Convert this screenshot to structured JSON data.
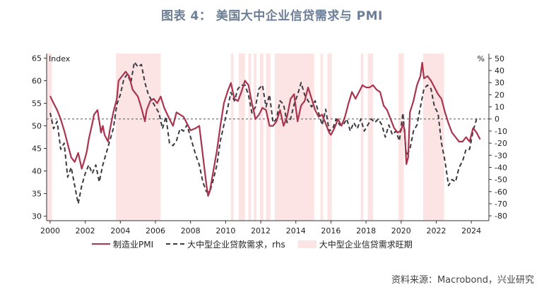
{
  "title": "图表 4： 美国大中企业信贷需求与 PMI",
  "source": "资料来源：Macrobond，兴业研究",
  "chart_data": {
    "type": "line",
    "left_axis_label": "Index",
    "right_axis_label": "%",
    "x_range": [
      1999.8,
      2025.0
    ],
    "y_left_range": [
      29,
      66
    ],
    "y_right_range": [
      -84,
      54
    ],
    "y_left_ticks": [
      30,
      35,
      40,
      45,
      50,
      55,
      60,
      65
    ],
    "y_right_ticks": [
      -80,
      -70,
      -60,
      -50,
      -40,
      -30,
      -20,
      -10,
      0,
      10,
      20,
      30,
      40,
      50
    ],
    "x_ticks": [
      2000,
      2002,
      2004,
      2006,
      2008,
      2010,
      2012,
      2014,
      2016,
      2018,
      2020,
      2022,
      2024
    ],
    "reference_line_right": 0,
    "shaded_periods": [
      [
        1999.8,
        2000.1
      ],
      [
        2003.75,
        2006.3
      ],
      [
        2010.3,
        2010.45
      ],
      [
        2010.75,
        2011.1
      ],
      [
        2011.3,
        2011.45
      ],
      [
        2011.6,
        2011.75
      ],
      [
        2011.95,
        2012.15
      ],
      [
        2012.3,
        2012.55
      ],
      [
        2012.8,
        2015.05
      ],
      [
        2015.4,
        2015.55
      ],
      [
        2015.8,
        2016.05
      ],
      [
        2017.7,
        2017.85
      ],
      [
        2018.1,
        2018.4
      ],
      [
        2019.85,
        2020.15
      ],
      [
        2021.25,
        2022.45
      ]
    ],
    "series": [
      {
        "name": "制造业PMI",
        "axis": "left",
        "color": "#a8344e",
        "style": "solid",
        "points": [
          [
            2000.0,
            56.6
          ],
          [
            2000.2,
            55.0
          ],
          [
            2000.4,
            53.5
          ],
          [
            2000.6,
            51.5
          ],
          [
            2000.8,
            49.0
          ],
          [
            2001.0,
            46.0
          ],
          [
            2001.2,
            43.0
          ],
          [
            2001.4,
            42.0
          ],
          [
            2001.6,
            44.0
          ],
          [
            2001.8,
            40.5
          ],
          [
            2002.0,
            43.0
          ],
          [
            2002.1,
            44.5
          ],
          [
            2002.2,
            47.0
          ],
          [
            2002.4,
            50.5
          ],
          [
            2002.5,
            52.5
          ],
          [
            2002.7,
            53.5
          ],
          [
            2002.8,
            51.0
          ],
          [
            2002.9,
            48.5
          ],
          [
            2003.0,
            50.0
          ],
          [
            2003.1,
            48.0
          ],
          [
            2003.3,
            46.5
          ],
          [
            2003.4,
            49.0
          ],
          [
            2003.6,
            53.0
          ],
          [
            2003.8,
            56.0
          ],
          [
            2003.9,
            60.0
          ],
          [
            2004.1,
            61.0
          ],
          [
            2004.3,
            62.0
          ],
          [
            2004.5,
            61.0
          ],
          [
            2004.7,
            58.0
          ],
          [
            2004.9,
            57.0
          ],
          [
            2005.0,
            56.5
          ],
          [
            2005.2,
            54.0
          ],
          [
            2005.4,
            51.0
          ],
          [
            2005.5,
            53.5
          ],
          [
            2005.7,
            55.5
          ],
          [
            2005.9,
            56.0
          ],
          [
            2006.1,
            55.0
          ],
          [
            2006.3,
            56.5
          ],
          [
            2006.5,
            54.0
          ],
          [
            2006.8,
            51.5
          ],
          [
            2007.0,
            50.0
          ],
          [
            2007.2,
            53.0
          ],
          [
            2007.4,
            52.5
          ],
          [
            2007.6,
            52.0
          ],
          [
            2007.8,
            50.5
          ],
          [
            2008.0,
            49.0
          ],
          [
            2008.3,
            49.5
          ],
          [
            2008.5,
            50.0
          ],
          [
            2008.7,
            43.5
          ],
          [
            2008.9,
            37.0
          ],
          [
            2009.0,
            34.5
          ],
          [
            2009.1,
            35.5
          ],
          [
            2009.3,
            40.0
          ],
          [
            2009.5,
            44.5
          ],
          [
            2009.7,
            50.0
          ],
          [
            2009.9,
            55.0
          ],
          [
            2010.1,
            57.5
          ],
          [
            2010.3,
            59.5
          ],
          [
            2010.5,
            56.0
          ],
          [
            2010.7,
            55.5
          ],
          [
            2010.9,
            57.5
          ],
          [
            2011.1,
            60.0
          ],
          [
            2011.3,
            59.0
          ],
          [
            2011.5,
            55.0
          ],
          [
            2011.7,
            51.5
          ],
          [
            2011.9,
            52.5
          ],
          [
            2012.1,
            54.0
          ],
          [
            2012.3,
            53.5
          ],
          [
            2012.5,
            50.0
          ],
          [
            2012.7,
            50.0
          ],
          [
            2012.9,
            51.0
          ],
          [
            2013.1,
            53.5
          ],
          [
            2013.3,
            50.0
          ],
          [
            2013.5,
            52.0
          ],
          [
            2013.7,
            56.0
          ],
          [
            2013.9,
            57.0
          ],
          [
            2014.1,
            51.0
          ],
          [
            2014.3,
            54.5
          ],
          [
            2014.5,
            55.5
          ],
          [
            2014.7,
            58.5
          ],
          [
            2014.9,
            56.0
          ],
          [
            2015.1,
            53.5
          ],
          [
            2015.3,
            52.0
          ],
          [
            2015.5,
            52.5
          ],
          [
            2015.7,
            50.5
          ],
          [
            2015.9,
            48.5
          ],
          [
            2016.0,
            48.0
          ],
          [
            2016.2,
            49.5
          ],
          [
            2016.4,
            51.5
          ],
          [
            2016.6,
            50.0
          ],
          [
            2016.8,
            52.0
          ],
          [
            2017.0,
            55.0
          ],
          [
            2017.2,
            57.5
          ],
          [
            2017.4,
            56.0
          ],
          [
            2017.6,
            57.5
          ],
          [
            2017.8,
            59.0
          ],
          [
            2018.0,
            58.5
          ],
          [
            2018.2,
            58.5
          ],
          [
            2018.4,
            59.0
          ],
          [
            2018.6,
            58.0
          ],
          [
            2018.8,
            57.5
          ],
          [
            2019.0,
            54.5
          ],
          [
            2019.2,
            53.5
          ],
          [
            2019.4,
            51.5
          ],
          [
            2019.6,
            49.5
          ],
          [
            2019.8,
            48.5
          ],
          [
            2020.0,
            49.0
          ],
          [
            2020.1,
            50.5
          ],
          [
            2020.2,
            49.0
          ],
          [
            2020.3,
            41.5
          ],
          [
            2020.4,
            43.0
          ],
          [
            2020.5,
            53.0
          ],
          [
            2020.7,
            55.5
          ],
          [
            2020.9,
            59.0
          ],
          [
            2021.1,
            61.0
          ],
          [
            2021.2,
            64.0
          ],
          [
            2021.3,
            60.5
          ],
          [
            2021.5,
            61.0
          ],
          [
            2021.7,
            60.0
          ],
          [
            2021.9,
            58.5
          ],
          [
            2022.1,
            57.0
          ],
          [
            2022.3,
            56.0
          ],
          [
            2022.5,
            53.0
          ],
          [
            2022.7,
            50.5
          ],
          [
            2022.9,
            48.5
          ],
          [
            2023.1,
            47.5
          ],
          [
            2023.3,
            46.5
          ],
          [
            2023.5,
            46.5
          ],
          [
            2023.7,
            47.5
          ],
          [
            2023.9,
            46.5
          ],
          [
            2024.1,
            49.5
          ],
          [
            2024.3,
            48.5
          ],
          [
            2024.5,
            47.0
          ]
        ]
      },
      {
        "name": "大中型企业贷款需求，rhs",
        "axis": "right",
        "color": "#3a3a42",
        "style": "dashed",
        "points": [
          [
            2000.0,
            5.0
          ],
          [
            2000.2,
            -8.0
          ],
          [
            2000.4,
            -2.0
          ],
          [
            2000.6,
            -25.0
          ],
          [
            2000.8,
            -20.0
          ],
          [
            2001.0,
            -48.0
          ],
          [
            2001.2,
            -40.0
          ],
          [
            2001.4,
            -55.0
          ],
          [
            2001.6,
            -70.0
          ],
          [
            2001.8,
            -55.0
          ],
          [
            2002.0,
            -45.0
          ],
          [
            2002.2,
            -38.0
          ],
          [
            2002.4,
            -45.0
          ],
          [
            2002.6,
            -38.0
          ],
          [
            2002.8,
            -52.0
          ],
          [
            2003.0,
            -38.0
          ],
          [
            2003.2,
            -28.0
          ],
          [
            2003.4,
            -18.0
          ],
          [
            2003.6,
            -8.0
          ],
          [
            2003.8,
            12.0
          ],
          [
            2004.0,
            20.0
          ],
          [
            2004.2,
            33.0
          ],
          [
            2004.4,
            37.0
          ],
          [
            2004.6,
            30.0
          ],
          [
            2004.8,
            47.0
          ],
          [
            2005.0,
            43.0
          ],
          [
            2005.2,
            45.0
          ],
          [
            2005.4,
            30.0
          ],
          [
            2005.6,
            20.0
          ],
          [
            2005.8,
            15.0
          ],
          [
            2006.0,
            10.0
          ],
          [
            2006.2,
            5.0
          ],
          [
            2006.4,
            -8.0
          ],
          [
            2006.6,
            2.0
          ],
          [
            2006.8,
            -20.0
          ],
          [
            2007.0,
            -22.0
          ],
          [
            2007.2,
            -18.0
          ],
          [
            2007.4,
            -8.0
          ],
          [
            2007.6,
            -10.0
          ],
          [
            2007.8,
            -5.0
          ],
          [
            2008.0,
            -15.0
          ],
          [
            2008.3,
            -30.0
          ],
          [
            2008.5,
            -38.0
          ],
          [
            2008.7,
            -52.0
          ],
          [
            2008.9,
            -60.0
          ],
          [
            2009.1,
            -60.0
          ],
          [
            2009.3,
            -50.0
          ],
          [
            2009.5,
            -38.0
          ],
          [
            2009.7,
            -18.0
          ],
          [
            2009.9,
            -5.0
          ],
          [
            2010.1,
            8.0
          ],
          [
            2010.3,
            22.0
          ],
          [
            2010.5,
            15.0
          ],
          [
            2010.7,
            25.0
          ],
          [
            2010.9,
            28.0
          ],
          [
            2011.1,
            28.0
          ],
          [
            2011.3,
            20.0
          ],
          [
            2011.5,
            5.0
          ],
          [
            2011.7,
            10.0
          ],
          [
            2011.9,
            25.0
          ],
          [
            2012.1,
            28.0
          ],
          [
            2012.3,
            10.0
          ],
          [
            2012.5,
            20.0
          ],
          [
            2012.7,
            -3.0
          ],
          [
            2012.9,
            0.0
          ],
          [
            2013.1,
            15.0
          ],
          [
            2013.3,
            12.0
          ],
          [
            2013.5,
            -3.0
          ],
          [
            2013.7,
            0.0
          ],
          [
            2013.9,
            12.0
          ],
          [
            2014.1,
            20.0
          ],
          [
            2014.3,
            30.0
          ],
          [
            2014.5,
            20.0
          ],
          [
            2014.7,
            15.0
          ],
          [
            2014.9,
            10.0
          ],
          [
            2015.1,
            15.0
          ],
          [
            2015.3,
            5.0
          ],
          [
            2015.5,
            -5.0
          ],
          [
            2015.7,
            8.0
          ],
          [
            2015.9,
            -10.0
          ],
          [
            2016.1,
            -8.0
          ],
          [
            2016.3,
            0.0
          ],
          [
            2016.5,
            -5.0
          ],
          [
            2016.7,
            -5.0
          ],
          [
            2016.9,
            0.0
          ],
          [
            2017.1,
            -10.0
          ],
          [
            2017.3,
            -3.0
          ],
          [
            2017.5,
            -8.0
          ],
          [
            2017.7,
            0.0
          ],
          [
            2017.9,
            -10.0
          ],
          [
            2018.1,
            -5.0
          ],
          [
            2018.3,
            0.0
          ],
          [
            2018.5,
            -3.0
          ],
          [
            2018.7,
            0.0
          ],
          [
            2018.9,
            -5.0
          ],
          [
            2019.1,
            -15.0
          ],
          [
            2019.3,
            -5.0
          ],
          [
            2019.5,
            -13.0
          ],
          [
            2019.7,
            -10.0
          ],
          [
            2019.9,
            -18.0
          ],
          [
            2020.1,
            5.0
          ],
          [
            2020.3,
            -30.0
          ],
          [
            2020.5,
            -25.0
          ],
          [
            2020.7,
            -10.0
          ],
          [
            2020.9,
            -5.0
          ],
          [
            2021.1,
            10.0
          ],
          [
            2021.3,
            25.0
          ],
          [
            2021.5,
            28.0
          ],
          [
            2021.7,
            25.0
          ],
          [
            2021.9,
            10.0
          ],
          [
            2022.1,
            5.0
          ],
          [
            2022.3,
            -20.0
          ],
          [
            2022.5,
            -35.0
          ],
          [
            2022.7,
            -55.0
          ],
          [
            2022.9,
            -50.0
          ],
          [
            2023.1,
            -52.0
          ],
          [
            2023.3,
            -40.0
          ],
          [
            2023.5,
            -35.0
          ],
          [
            2023.7,
            -25.0
          ],
          [
            2023.9,
            -25.0
          ],
          [
            2024.1,
            -10.0
          ],
          [
            2024.3,
            0.0
          ],
          [
            2024.5,
            0.0
          ]
        ]
      }
    ],
    "legend": [
      "制造业PMI",
      "大中型企业贷款需求，rhs",
      "大中型企业信贷需求旺期"
    ],
    "legend_placement": "bottom",
    "grid": false
  }
}
